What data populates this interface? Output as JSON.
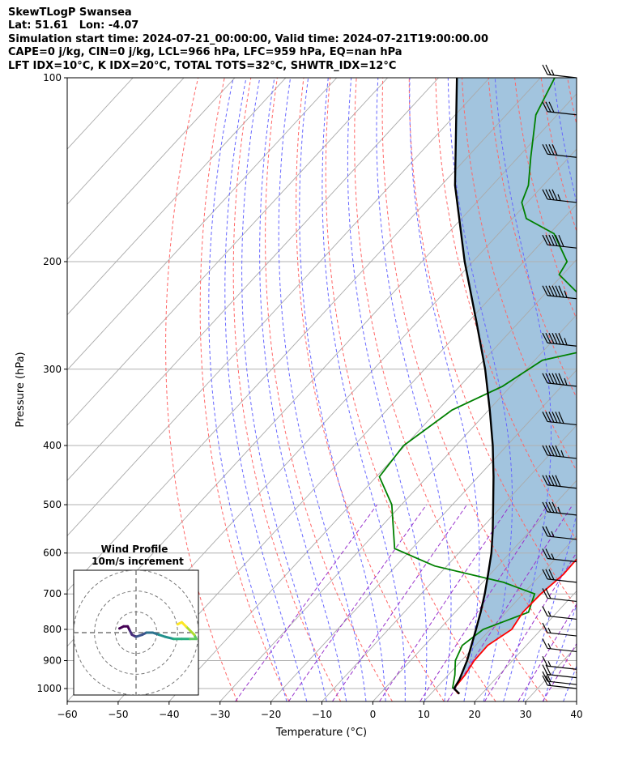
{
  "header": {
    "line1": "SkewTLogP Swansea",
    "line2": "Lat: 51.61   Lon: -4.07",
    "line3": "Simulation start time: 2024-07-21_00:00:00, Valid time: 2024-07-21T19:00:00.00",
    "line4": "CAPE=0 j/kg, CIN=0 j/kg, LCL=966 hPa, LFC=959 hPa, EQ=nan hPa",
    "line5": "LFT IDX=10°C, K IDX=20°C, TOTAL TOTS=32°C, SHWTR_IDX=12°C"
  },
  "chart_data": {
    "type": "skewt",
    "xlabel": "Temperature (°C)",
    "ylabel": "Pressure (hPa)",
    "xlim": [
      -60,
      40
    ],
    "ylim": [
      1050,
      100
    ],
    "x_ticks": [
      -60,
      -50,
      -40,
      -30,
      -20,
      -10,
      0,
      10,
      20,
      30,
      40
    ],
    "x_tick_labels": [
      "−60",
      "−50",
      "−40",
      "−30",
      "−20",
      "−10",
      "0",
      "10",
      "20",
      "30",
      "40"
    ],
    "y_ticks": [
      1000,
      900,
      800,
      700,
      600,
      500,
      400,
      300,
      200,
      100
    ],
    "y_tick_labels": [
      "1000",
      "900",
      "800",
      "700",
      "600",
      "500",
      "400",
      "300",
      "200",
      "100"
    ],
    "grid": true,
    "colors": {
      "temperature": "#ff0000",
      "dewpoint": "#008000",
      "parcel": "#000000",
      "cape_fill": "#a2c4de",
      "dry_adiabat": "#ff6666",
      "moist_adiabat": "#6666ff",
      "mixing_ratio": "#9933cc",
      "isotherm": "#aaaaaa"
    },
    "series": [
      {
        "name": "",
        "kind": "temperature",
        "points": [
          [
            15.4,
            1020
          ],
          [
            13.6,
            1000
          ],
          [
            13.3,
            950
          ],
          [
            12.5,
            900
          ],
          [
            12.4,
            850
          ],
          [
            14.2,
            800
          ],
          [
            13.3,
            750
          ],
          [
            13.5,
            700
          ],
          [
            14.4,
            650
          ],
          [
            14.2,
            600
          ],
          [
            13.6,
            550
          ],
          [
            11.9,
            500
          ],
          [
            10.1,
            450
          ],
          [
            8.4,
            400
          ],
          [
            6.4,
            350
          ],
          [
            4.5,
            300
          ],
          [
            2.7,
            260
          ],
          [
            4.2,
            230
          ],
          [
            6.8,
            215
          ],
          [
            6.6,
            200
          ],
          [
            6.2,
            185
          ],
          [
            6.5,
            170
          ],
          [
            6.2,
            150
          ],
          [
            5.7,
            135
          ],
          [
            7.2,
            120
          ],
          [
            9.1,
            110
          ],
          [
            11.2,
            100
          ]
        ]
      },
      {
        "name": "",
        "kind": "dewpoint",
        "points": [
          [
            13.3,
            1000
          ],
          [
            11.3,
            950
          ],
          [
            8.8,
            900
          ],
          [
            7.4,
            850
          ],
          [
            8.6,
            800
          ],
          [
            14.4,
            750
          ],
          [
            12.3,
            700
          ],
          [
            4.1,
            670
          ],
          [
            -12.4,
            630
          ],
          [
            -23.4,
            590
          ],
          [
            -31.9,
            500
          ],
          [
            -39.4,
            450
          ],
          [
            -40.3,
            400
          ],
          [
            -37.2,
            350
          ],
          [
            -31.6,
            320
          ],
          [
            -28.5,
            290
          ],
          [
            -15.1,
            270
          ],
          [
            -23.2,
            250
          ],
          [
            -40.7,
            210
          ],
          [
            -41.5,
            200
          ],
          [
            -49.1,
            180
          ],
          [
            -57.3,
            170
          ],
          [
            -61.1,
            160
          ],
          [
            -62.9,
            150
          ],
          [
            -67.5,
            135
          ],
          [
            -74.2,
            115
          ],
          [
            -77.2,
            100
          ]
        ]
      },
      {
        "name": "",
        "kind": "parcel",
        "points": [
          [
            15.6,
            1020
          ],
          [
            13.6,
            1000
          ],
          [
            13.0,
            966
          ],
          [
            11.1,
            900
          ],
          [
            9.2,
            850
          ],
          [
            7.2,
            800
          ],
          [
            5.0,
            750
          ],
          [
            2.5,
            700
          ],
          [
            -0.4,
            650
          ],
          [
            -3.6,
            600
          ],
          [
            -7.5,
            550
          ],
          [
            -12.0,
            500
          ],
          [
            -17.0,
            450
          ],
          [
            -22.8,
            400
          ],
          [
            -29.8,
            350
          ],
          [
            -38.1,
            300
          ],
          [
            -48.6,
            250
          ],
          [
            -61.6,
            200
          ],
          [
            -77.3,
            150
          ],
          [
            -96.4,
            100
          ]
        ]
      }
    ],
    "wind_barbs": [
      {
        "p": 1000,
        "speed_kt": 20
      },
      {
        "p": 985,
        "speed_kt": 20
      },
      {
        "p": 960,
        "speed_kt": 20
      },
      {
        "p": 930,
        "speed_kt": 15
      },
      {
        "p": 870,
        "speed_kt": 15
      },
      {
        "p": 820,
        "speed_kt": 15
      },
      {
        "p": 770,
        "speed_kt": 15
      },
      {
        "p": 720,
        "speed_kt": 20
      },
      {
        "p": 670,
        "speed_kt": 30
      },
      {
        "p": 620,
        "speed_kt": 25
      },
      {
        "p": 570,
        "speed_kt": 25
      },
      {
        "p": 520,
        "speed_kt": 45
      },
      {
        "p": 470,
        "speed_kt": 50
      },
      {
        "p": 420,
        "speed_kt": 55
      },
      {
        "p": 370,
        "speed_kt": 60
      },
      {
        "p": 320,
        "speed_kt": 65
      },
      {
        "p": 275,
        "speed_kt": 65
      },
      {
        "p": 230,
        "speed_kt": 65
      },
      {
        "p": 190,
        "speed_kt": 60
      },
      {
        "p": 160,
        "speed_kt": 45
      },
      {
        "p": 135,
        "speed_kt": 40
      },
      {
        "p": 115,
        "speed_kt": 30
      },
      {
        "p": 100,
        "speed_kt": 25
      }
    ],
    "hodograph": {
      "title": "Wind Profile",
      "subtitle": "10m/s increment",
      "ring_spacing_ms": 10,
      "lim_ms": 30,
      "points": [
        [
          -8,
          2
        ],
        [
          -6,
          3
        ],
        [
          -4,
          3
        ],
        [
          -3,
          1
        ],
        [
          -2,
          -1
        ],
        [
          0,
          -2
        ],
        [
          3,
          -1
        ],
        [
          5,
          0
        ],
        [
          8,
          0
        ],
        [
          11,
          -1
        ],
        [
          14,
          -2
        ],
        [
          18,
          -3
        ],
        [
          22,
          -3
        ],
        [
          26,
          -3
        ],
        [
          29,
          -3
        ],
        [
          28,
          -1
        ],
        [
          26,
          1
        ],
        [
          24,
          3
        ],
        [
          22,
          5
        ],
        [
          20,
          4
        ]
      ]
    }
  }
}
